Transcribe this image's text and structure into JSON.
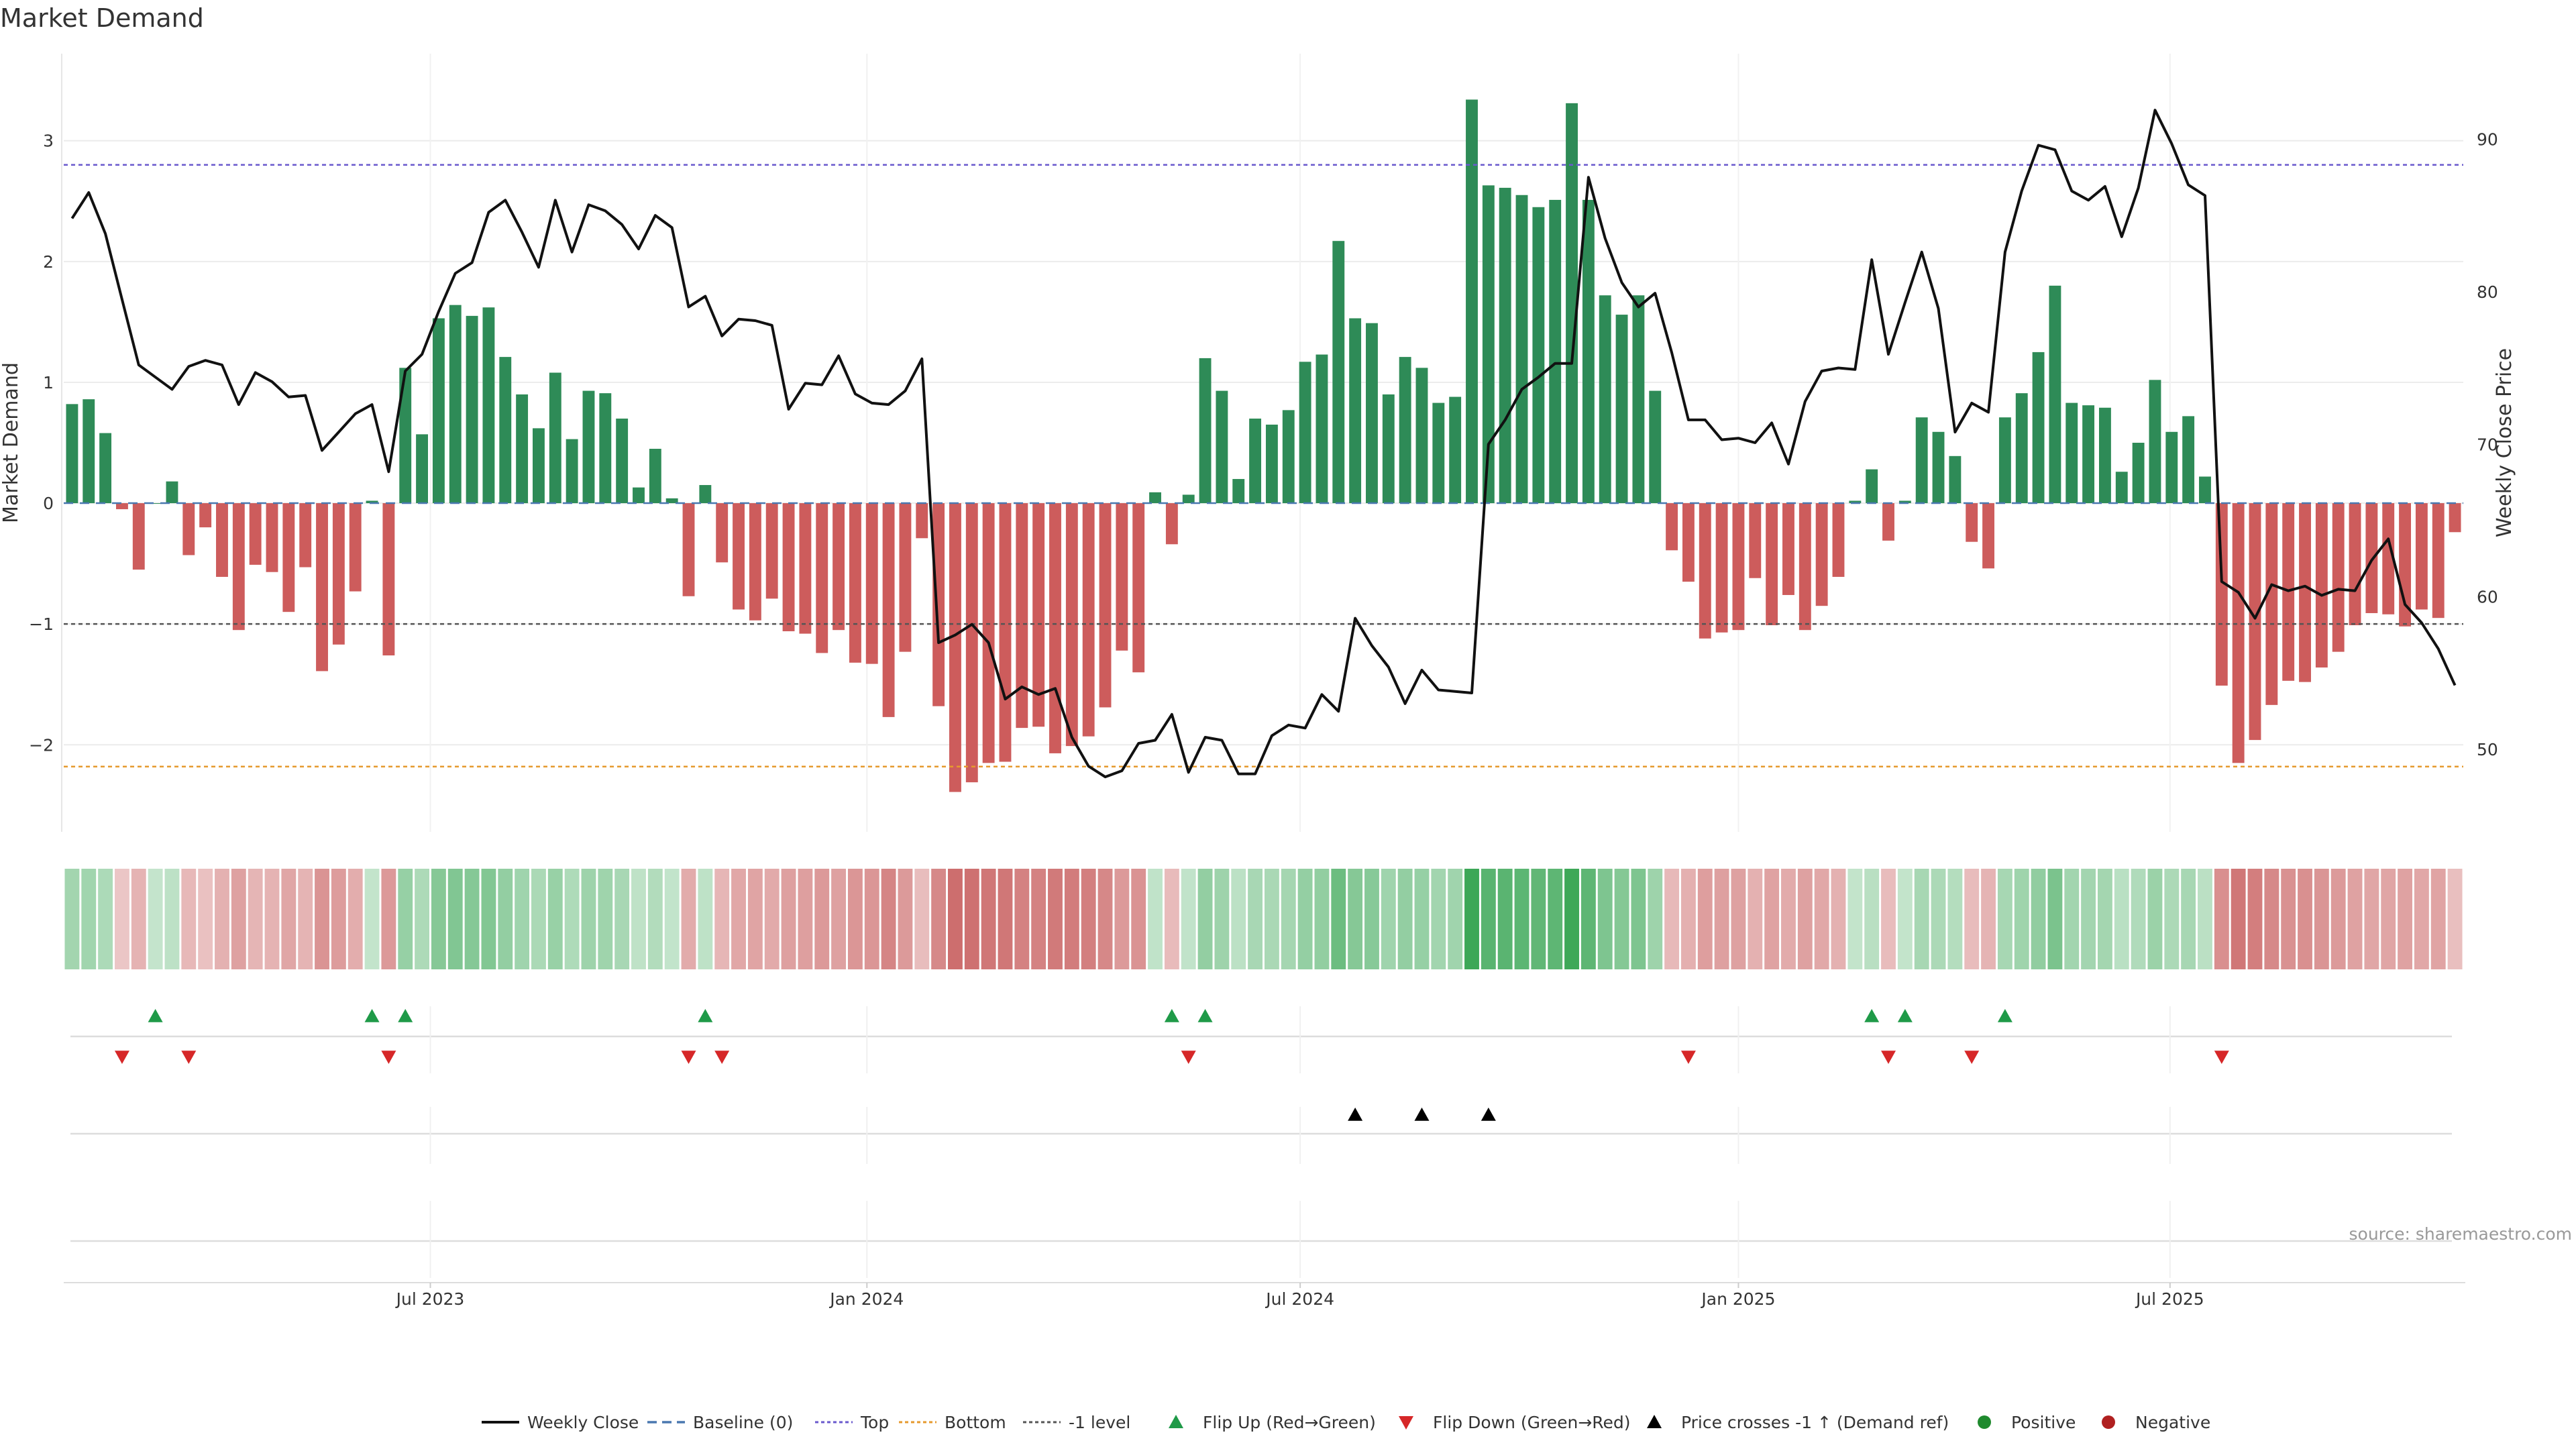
{
  "chart_data": {
    "type": "bar",
    "title": "Market Demand",
    "ylabel_left": "Market Demand",
    "ylabel_right": "Weekly Close Price",
    "ylim_left": [
      -2.72,
      3.72
    ],
    "ylim_right": [
      44.6,
      95.6
    ],
    "yticks_left": [
      -2,
      -1,
      0,
      1,
      2,
      3
    ],
    "yticks_right": [
      50,
      60,
      70,
      80,
      90
    ],
    "yticks_left_labels": [
      "−2",
      "−1",
      "0",
      "1",
      "2",
      "3"
    ],
    "yticks_right_labels": [
      "50",
      "60",
      "70",
      "80",
      "90"
    ],
    "x_tick_labels": [
      "Jul 2023",
      "Jan 2024",
      "Jul 2024",
      "Jan 2025",
      "Jul 2025"
    ],
    "x_tick_weeks": [
      21.5,
      47.7,
      73.7,
      100,
      125.9
    ],
    "reference_lines": {
      "top": 2.8,
      "bottom": -2.18,
      "minus_one": -1,
      "baseline": 0
    },
    "colors": {
      "positive": "#2e8b57",
      "negative": "#cd5c5c",
      "line": "#111111",
      "top": "#6a5acd",
      "bottom": "#e69a2e",
      "minus_one": "#555555",
      "baseline": "#4a78b0",
      "flip_up": "#1f9a48",
      "flip_down": "#d62728",
      "cross": "#000000"
    },
    "demand": [
      0.82,
      0.86,
      0.58,
      -0.05,
      -0.55,
      0,
      0.18,
      -0.43,
      -0.2,
      -0.61,
      -1.05,
      -0.51,
      -0.57,
      -0.9,
      -0.53,
      -1.39,
      -1.17,
      -0.73,
      0.02,
      -1.26,
      1.12,
      0.57,
      1.53,
      1.64,
      1.55,
      1.62,
      1.21,
      0.9,
      0.62,
      1.08,
      0.53,
      0.93,
      0.91,
      0.7,
      0.13,
      0.45,
      0.04,
      -0.77,
      0.15,
      -0.49,
      -0.88,
      -0.97,
      -0.79,
      -1.06,
      -1.08,
      -1.24,
      -1.05,
      -1.32,
      -1.33,
      -1.77,
      -1.23,
      -0.29,
      -1.68,
      -2.39,
      -2.31,
      -2.15,
      -2.14,
      -1.86,
      -1.85,
      -2.07,
      -2.01,
      -1.93,
      -1.69,
      -1.22,
      -1.4,
      0.09,
      -0.34,
      0.07,
      1.2,
      0.93,
      0.2,
      0.7,
      0.65,
      0.77,
      1.17,
      1.23,
      2.17,
      1.53,
      1.49,
      0.9,
      1.21,
      1.12,
      0.83,
      0.88,
      3.34,
      2.63,
      2.61,
      2.55,
      2.45,
      2.51,
      3.31,
      2.51,
      1.72,
      1.56,
      1.72,
      0.93,
      -0.39,
      -0.65,
      -1.12,
      -1.07,
      -1.05,
      -0.62,
      -1.01,
      -0.76,
      -1.05,
      -0.85,
      -0.61,
      0.02,
      0.28,
      -0.31,
      0.02,
      0.71,
      0.59,
      0.39,
      -0.32,
      -0.54,
      0.71,
      0.91,
      1.25,
      1.8,
      0.83,
      0.81,
      0.79,
      0.26,
      0.5,
      1.02,
      0.59,
      0.72,
      0.22,
      -1.51,
      -2.15,
      -1.96,
      -1.67,
      -1.47,
      -1.48,
      -1.36,
      -1.23,
      -1.01,
      -0.91,
      -0.92,
      -1.02,
      -0.88,
      -0.95,
      -0.24
    ],
    "weekly_close": [
      84.8,
      86.5,
      83.8,
      79.5,
      75.2,
      74.4,
      73.6,
      75.1,
      75.5,
      75.2,
      72.6,
      74.7,
      74.1,
      73.1,
      73.2,
      69.6,
      70.8,
      72.0,
      72.6,
      68.2,
      74.8,
      75.9,
      78.7,
      81.2,
      81.9,
      85.2,
      86.0,
      83.9,
      81.6,
      86.0,
      82.6,
      85.7,
      85.3,
      84.4,
      82.8,
      85.0,
      84.2,
      79.0,
      79.7,
      77.1,
      78.2,
      78.1,
      77.8,
      72.3,
      74.0,
      73.9,
      75.8,
      73.3,
      72.7,
      72.6,
      73.5,
      75.6,
      57.0,
      57.5,
      58.2,
      57.0,
      53.3,
      54.1,
      53.6,
      54.0,
      50.8,
      48.9,
      48.2,
      48.6,
      50.4,
      50.6,
      52.3,
      48.5,
      50.8,
      50.6,
      48.4,
      48.4,
      50.9,
      51.6,
      51.4,
      53.6,
      52.5,
      58.6,
      56.8,
      55.4,
      53.0,
      55.2,
      53.9,
      53.8,
      53.7,
      70.0,
      71.6,
      73.6,
      74.4,
      75.3,
      75.3,
      87.5,
      83.5,
      80.6,
      79.0,
      79.9,
      76.0,
      71.6,
      71.6,
      70.3,
      70.4,
      70.1,
      71.4,
      68.7,
      72.8,
      74.8,
      75.0,
      74.9,
      82.1,
      75.9,
      79.3,
      82.6,
      78.9,
      70.8,
      72.7,
      72.1,
      82.6,
      86.6,
      89.6,
      89.3,
      86.6,
      86.0,
      86.9,
      83.6,
      86.8,
      91.9,
      89.7,
      87.0,
      86.3,
      61.0,
      60.3,
      58.6,
      60.8,
      60.4,
      60.7,
      60.1,
      60.5,
      60.4,
      62.4,
      63.8,
      59.5,
      58.3,
      56.6,
      54.2
    ]
  },
  "panels": {
    "flips": {
      "up_weeks": [
        5,
        18,
        20,
        38,
        66,
        68,
        108,
        110,
        116
      ],
      "down_weeks": [
        3,
        7,
        19,
        37,
        39,
        67,
        97,
        109,
        114,
        129
      ]
    },
    "crosses": {
      "weeks": [
        77,
        81,
        85
      ]
    }
  },
  "legend": [
    {
      "label": "Weekly Close",
      "icon": "solid-line-icon"
    },
    {
      "label": "Baseline (0)",
      "icon": "dashed-line-icon"
    },
    {
      "label": "Top",
      "icon": "dotted-line-icon"
    },
    {
      "label": "Bottom",
      "icon": "dotted-line-icon"
    },
    {
      "label": "-1 level",
      "icon": "dotted-line-icon"
    },
    {
      "label": "Flip Up (Red→Green)",
      "icon": "triangle-up-icon"
    },
    {
      "label": "Flip Down (Green→Red)",
      "icon": "triangle-down-icon"
    },
    {
      "label": "Price crosses -1 ↑ (Demand ref)",
      "icon": "triangle-up-icon"
    },
    {
      "label": "Positive",
      "icon": "circle-icon"
    },
    {
      "label": "Negative",
      "icon": "circle-icon"
    }
  ],
  "source": "source: sharemaestro.com"
}
